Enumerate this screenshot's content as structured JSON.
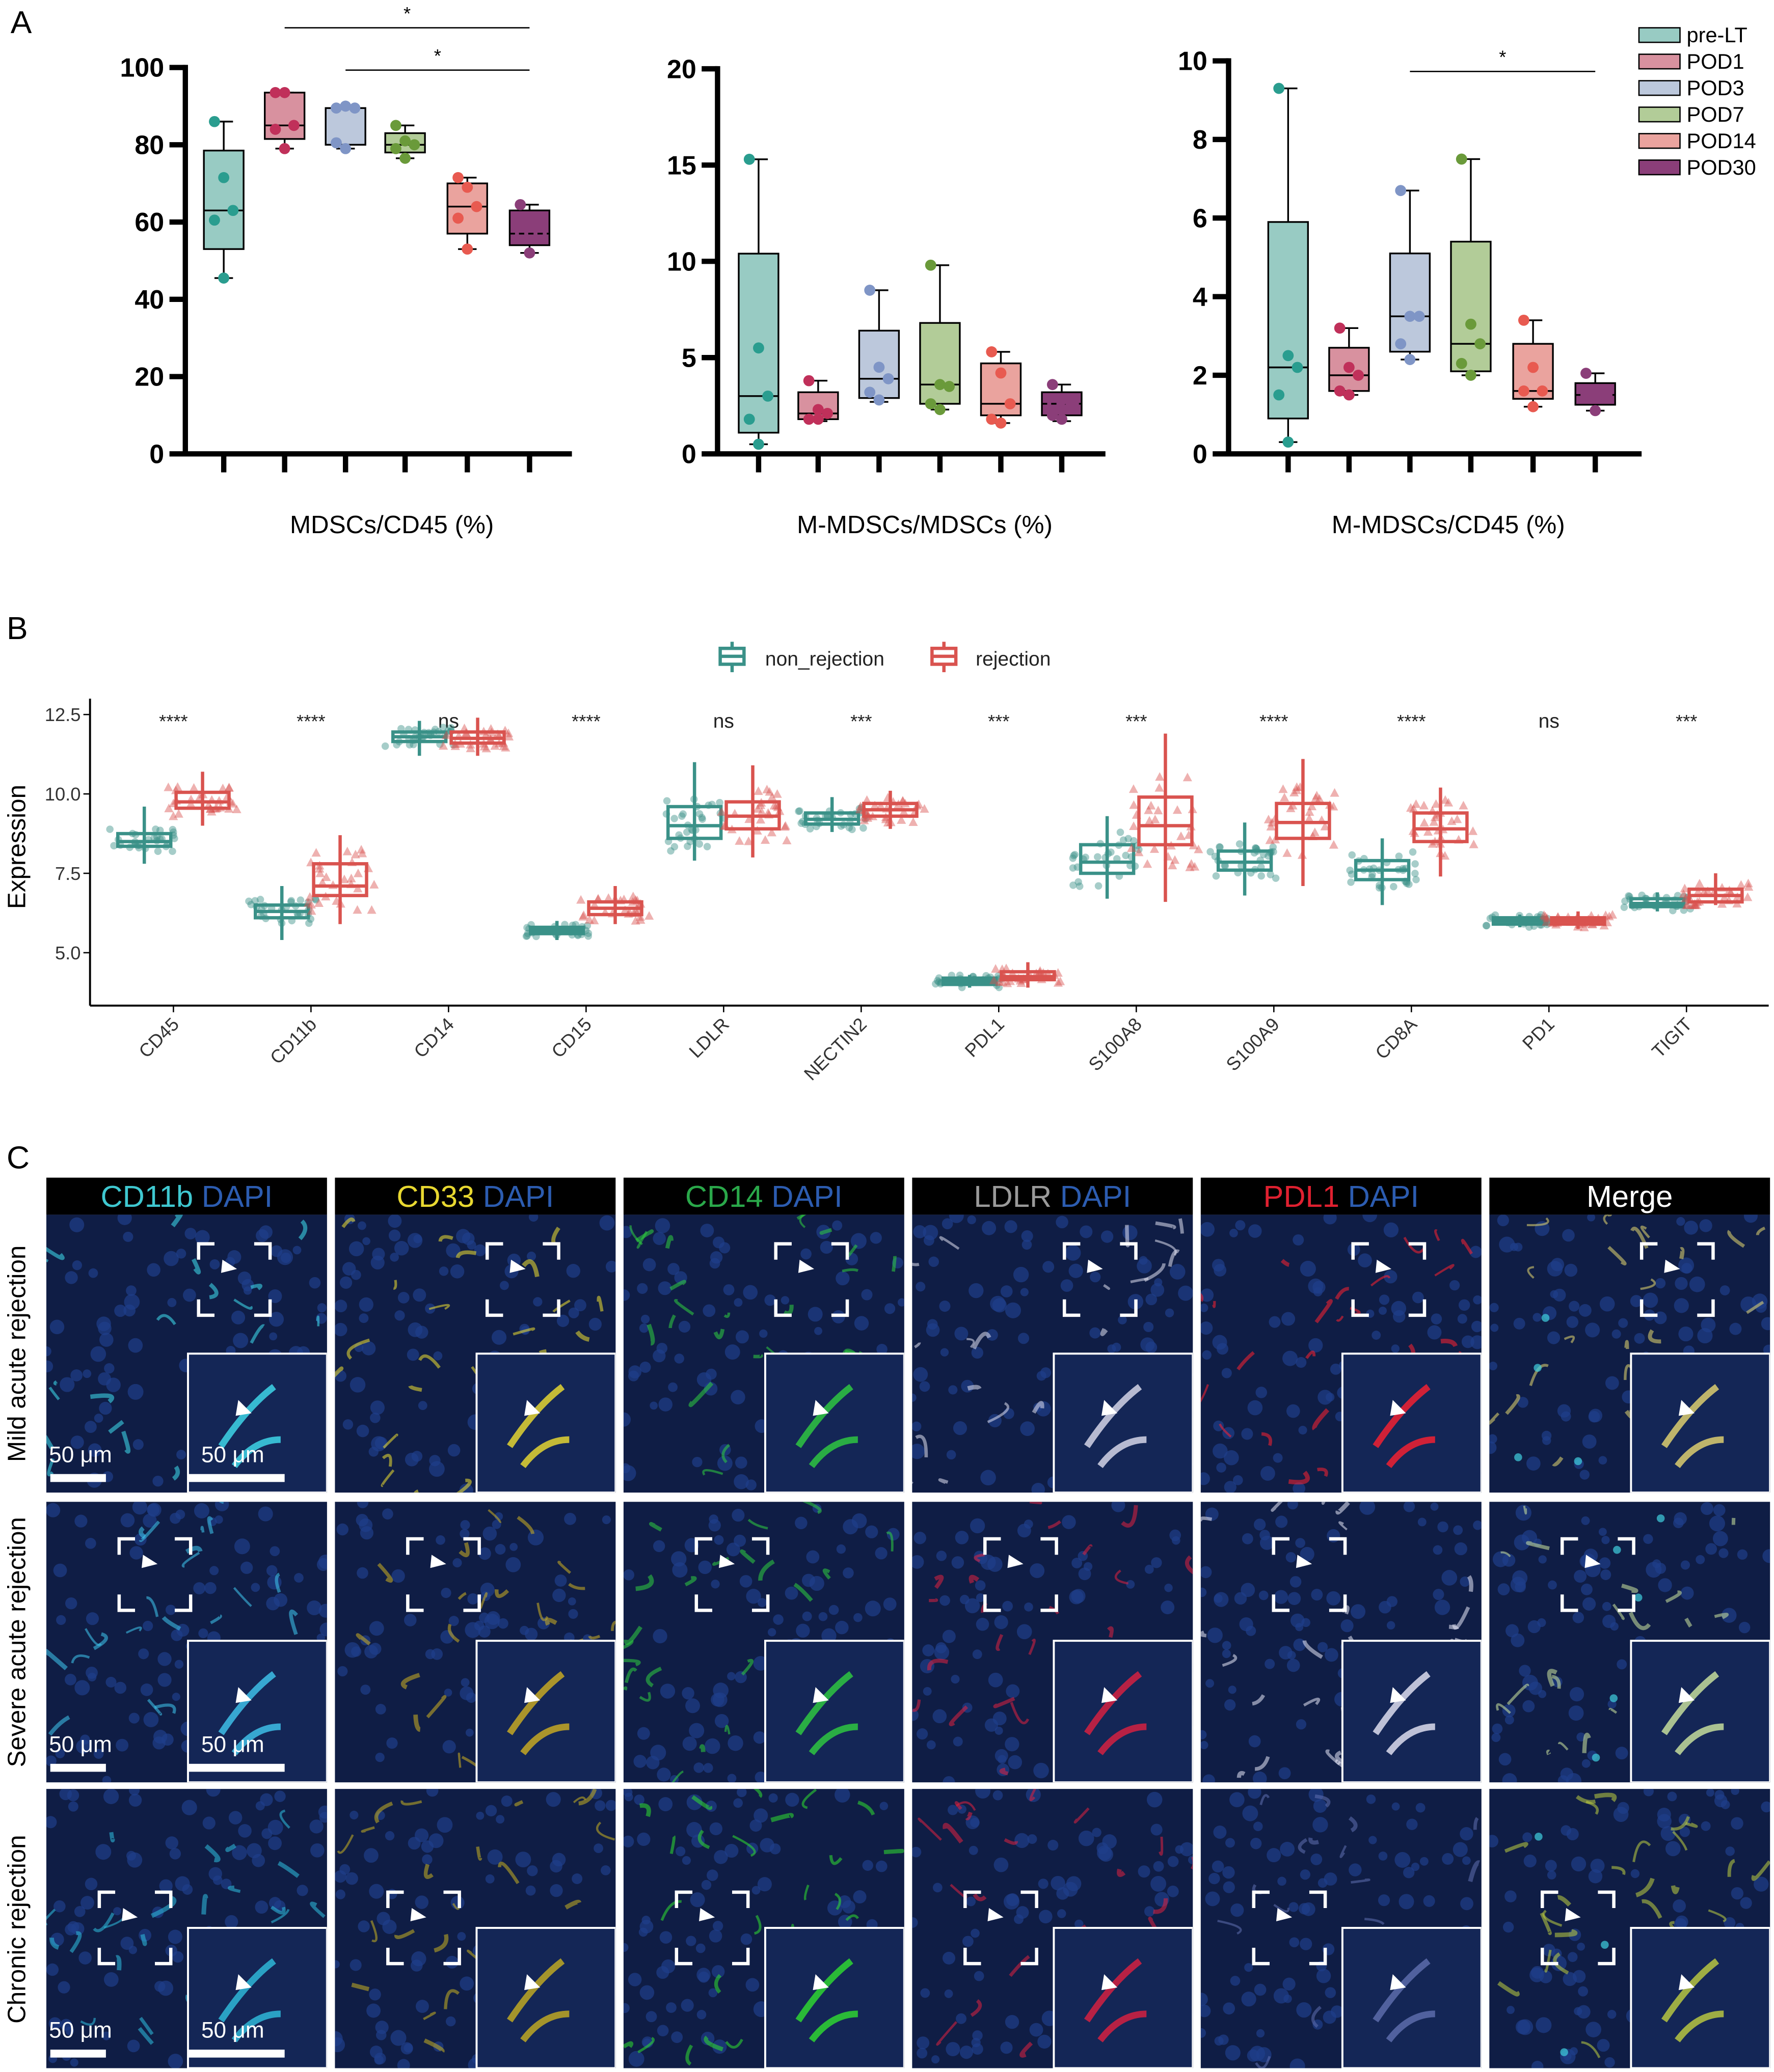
{
  "panel_labels": {
    "a": "A",
    "b": "B",
    "c": "C"
  },
  "colors": {
    "groups": {
      "pre-LT": {
        "fill": "#98cbc3",
        "dot": "#2a9d8f"
      },
      "POD1": {
        "fill": "#d8919f",
        "dot": "#c0305a"
      },
      "POD3": {
        "fill": "#bcc8dc",
        "dot": "#7f95c6"
      },
      "POD7": {
        "fill": "#b2cc98",
        "dot": "#6a9a3a"
      },
      "POD14": {
        "fill": "#eaa39e",
        "dot": "#e85a50"
      },
      "POD30": {
        "fill": "#8b3e79",
        "dot": "#8b3e79"
      }
    },
    "non_rejection": "#3a9188",
    "rejection": "#d9534f"
  },
  "chart_data": [
    {
      "type": "box",
      "xlabel": "MDSCs/CD45 (%)",
      "ylim": [
        0,
        100
      ],
      "yticks": [
        "0",
        "20",
        "40",
        "60",
        "80",
        "100"
      ],
      "categories": [
        "pre-LT",
        "POD1",
        "POD3",
        "POD7",
        "POD14",
        "POD30"
      ],
      "boxes": [
        {
          "min": 45.5,
          "q1": 53,
          "median": 63,
          "q3": 78.5,
          "max": 86,
          "points": [
            86,
            71.5,
            63,
            60.5,
            45.5
          ]
        },
        {
          "min": 79,
          "q1": 81.5,
          "median": 85,
          "q3": 93.5,
          "max": 93.5,
          "points": [
            93.5,
            93.5,
            85,
            84,
            79
          ]
        },
        {
          "min": 79,
          "q1": 80,
          "median": 89.5,
          "q3": 89.5,
          "max": 90,
          "points": [
            89.5,
            90,
            89.5,
            80.5,
            79
          ]
        },
        {
          "min": 76.5,
          "q1": 78,
          "median": 80,
          "q3": 83,
          "max": 85,
          "points": [
            85,
            81,
            80,
            79,
            76.5
          ]
        },
        {
          "min": 53,
          "q1": 57,
          "median": 64,
          "q3": 70,
          "max": 71.5,
          "points": [
            71.5,
            69,
            64,
            61,
            53
          ]
        },
        {
          "min": 52,
          "q1": 54,
          "median": 57,
          "q3": 63,
          "max": 64.5,
          "points": [
            64.5,
            52
          ]
        }
      ],
      "significance": [
        {
          "from": "POD1",
          "to": "POD30",
          "label": "*"
        },
        {
          "from": "POD3",
          "to": "POD30",
          "label": "*"
        }
      ]
    },
    {
      "type": "box",
      "xlabel": "M-MDSCs/MDSCs (%)",
      "ylim": [
        0,
        20
      ],
      "yticks": [
        "0",
        "5",
        "10",
        "15",
        "20"
      ],
      "categories": [
        "pre-LT",
        "POD1",
        "POD3",
        "POD7",
        "POD14",
        "POD30"
      ],
      "boxes": [
        {
          "min": 0.5,
          "q1": 1.1,
          "median": 3,
          "q3": 10.4,
          "max": 15.3,
          "points": [
            15.3,
            5.5,
            3,
            1.8,
            0.5
          ]
        },
        {
          "min": 1.7,
          "q1": 1.8,
          "median": 2.1,
          "q3": 3.2,
          "max": 3.8,
          "points": [
            3.8,
            2.3,
            2.1,
            1.8,
            1.8
          ]
        },
        {
          "min": 2.7,
          "q1": 2.9,
          "median": 3.9,
          "q3": 6.4,
          "max": 8.5,
          "points": [
            8.5,
            4.5,
            3.9,
            3.2,
            2.8
          ]
        },
        {
          "min": 2.3,
          "q1": 2.6,
          "median": 3.6,
          "q3": 6.8,
          "max": 9.8,
          "points": [
            9.8,
            3.6,
            3.5,
            2.6,
            2.3
          ]
        },
        {
          "min": 1.6,
          "q1": 2,
          "median": 2.6,
          "q3": 4.7,
          "max": 5.3,
          "points": [
            5.3,
            4.2,
            2.6,
            1.8,
            1.6
          ]
        },
        {
          "min": 1.7,
          "q1": 2,
          "median": 2.6,
          "q3": 3.2,
          "max": 3.6,
          "points": [
            3.6,
            2.8,
            2.5,
            2,
            1.8
          ]
        }
      ],
      "significance": []
    },
    {
      "type": "box",
      "xlabel": "M-MDSCs/CD45 (%)",
      "ylim": [
        0,
        10
      ],
      "yticks": [
        "0",
        "2",
        "4",
        "6",
        "8",
        "10"
      ],
      "categories": [
        "pre-LT",
        "POD1",
        "POD3",
        "POD7",
        "POD14",
        "POD30"
      ],
      "boxes": [
        {
          "min": 0.3,
          "q1": 0.9,
          "median": 2.2,
          "q3": 5.9,
          "max": 9.3,
          "points": [
            9.3,
            2.5,
            2.2,
            1.5,
            0.3
          ]
        },
        {
          "min": 1.5,
          "q1": 1.6,
          "median": 2,
          "q3": 2.7,
          "max": 3.2,
          "points": [
            3.2,
            2.2,
            2,
            1.6,
            1.5
          ]
        },
        {
          "min": 2.4,
          "q1": 2.6,
          "median": 3.5,
          "q3": 5.1,
          "max": 6.7,
          "points": [
            6.7,
            3.5,
            3.5,
            2.8,
            2.4
          ]
        },
        {
          "min": 2,
          "q1": 2.1,
          "median": 2.8,
          "q3": 5.4,
          "max": 7.5,
          "points": [
            7.5,
            3.3,
            2.8,
            2.3,
            2
          ]
        },
        {
          "min": 1.2,
          "q1": 1.4,
          "median": 1.6,
          "q3": 2.8,
          "max": 3.4,
          "points": [
            3.4,
            2.2,
            1.6,
            1.6,
            1.2
          ]
        },
        {
          "min": 1.1,
          "q1": 1.25,
          "median": 1.5,
          "q3": 1.8,
          "max": 2.05,
          "points": [
            2.05,
            1.5,
            1.5,
            1.5,
            1.1
          ]
        }
      ],
      "significance": [
        {
          "from": "POD3",
          "to": "POD30",
          "label": "*"
        }
      ],
      "legend": [
        "pre-LT",
        "POD1",
        "POD3",
        "POD7",
        "POD14",
        "POD30"
      ],
      "legend_position": "top-right"
    },
    {
      "type": "box",
      "ylabel": "Expression",
      "ylim": [
        3.7,
        13
      ],
      "yticks": [
        "5.0",
        "7.5",
        "10.0",
        "12.5"
      ],
      "legend": [
        "non_rejection",
        "rejection"
      ],
      "legend_position": "top",
      "categories": [
        "CD45",
        "CD11b",
        "CD14",
        "CD15",
        "LDLR",
        "NECTIN2",
        "PDL1",
        "S100A8",
        "S100A9",
        "CD8A",
        "PD1",
        "TIGIT"
      ],
      "significance": [
        "****",
        "****",
        "ns",
        "****",
        "ns",
        "***",
        "***",
        "***",
        "****",
        "****",
        "ns",
        "***"
      ],
      "series": [
        {
          "name": "non_rejection",
          "boxes": [
            [
              7.8,
              8.35,
              8.5,
              8.75,
              9.6
            ],
            [
              5.4,
              6.1,
              6.3,
              6.5,
              7.1
            ],
            [
              11.2,
              11.65,
              11.8,
              11.95,
              12.3
            ],
            [
              5.4,
              5.6,
              5.7,
              5.8,
              6.0
            ],
            [
              7.9,
              8.6,
              9.0,
              9.6,
              11.0
            ],
            [
              8.8,
              9.05,
              9.2,
              9.4,
              9.9
            ],
            [
              3.9,
              4.0,
              4.1,
              4.2,
              4.3
            ],
            [
              6.7,
              7.5,
              7.85,
              8.4,
              9.3
            ],
            [
              6.8,
              7.6,
              7.85,
              8.2,
              9.1
            ],
            [
              6.5,
              7.3,
              7.6,
              7.9,
              8.6
            ],
            [
              5.8,
              5.9,
              6.0,
              6.1,
              6.2
            ],
            [
              6.3,
              6.45,
              6.55,
              6.7,
              6.9
            ]
          ]
        },
        {
          "name": "rejection",
          "boxes": [
            [
              9.0,
              9.55,
              9.75,
              10.05,
              10.7
            ],
            [
              5.9,
              6.8,
              7.1,
              7.8,
              8.7
            ],
            [
              11.2,
              11.6,
              11.75,
              11.95,
              12.4
            ],
            [
              5.9,
              6.2,
              6.4,
              6.6,
              7.1
            ],
            [
              8.0,
              8.9,
              9.3,
              9.75,
              10.9
            ],
            [
              8.9,
              9.3,
              9.5,
              9.7,
              10.1
            ],
            [
              3.9,
              4.15,
              4.25,
              4.4,
              4.7
            ],
            [
              6.6,
              8.4,
              9.0,
              9.9,
              11.9
            ],
            [
              7.1,
              8.6,
              9.1,
              9.7,
              11.1
            ],
            [
              7.4,
              8.5,
              8.9,
              9.4,
              10.2
            ],
            [
              5.75,
              5.9,
              6.0,
              6.1,
              6.3
            ],
            [
              6.5,
              6.6,
              6.8,
              7.0,
              7.5
            ]
          ]
        }
      ]
    }
  ],
  "microscopy": {
    "headers": [
      [
        {
          "text": "CD11b",
          "color": "#3fc8d0"
        },
        {
          "text": " DAPI",
          "color": "#2c5cb0"
        }
      ],
      [
        {
          "text": "CD33",
          "color": "#e8d830"
        },
        {
          "text": " DAPI",
          "color": "#2c5cb0"
        }
      ],
      [
        {
          "text": "CD14",
          "color": "#2aa84a"
        },
        {
          "text": " DAPI",
          "color": "#2c5cb0"
        }
      ],
      [
        {
          "text": "LDLR",
          "color": "#9a9a9a"
        },
        {
          "text": " DAPI",
          "color": "#2c5cb0"
        }
      ],
      [
        {
          "text": "PDL1",
          "color": "#e02030"
        },
        {
          "text": " DAPI",
          "color": "#2c5cb0"
        }
      ],
      [
        {
          "text": "Merge",
          "color": "#ffffff"
        }
      ]
    ],
    "rows": [
      "Mild acute rejection",
      "Severe acute rejection",
      "Chronic rejection"
    ],
    "scale_bar": "50 μm",
    "stain_colors": [
      [
        "#40e0f0",
        "#f0e030",
        "#30d040",
        "#e0e0f0",
        "#ff2030",
        "#e8d870"
      ],
      [
        "#40c8f0",
        "#d0b020",
        "#30d040",
        "#e02040",
        "#e8e8f8",
        "#d0e8a0"
      ],
      [
        "#30c0e0",
        "#c8b020",
        "#30e030",
        "#e02040",
        "#6070b0",
        "#c0d040"
      ]
    ]
  }
}
